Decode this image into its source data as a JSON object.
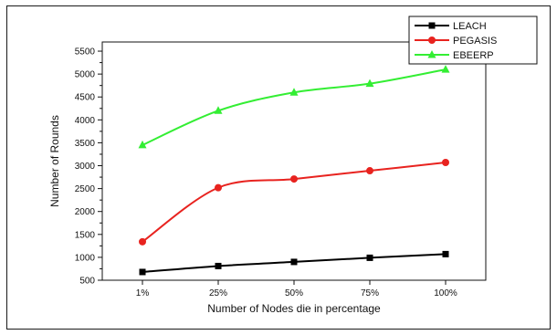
{
  "chart_data": {
    "type": "line",
    "title": "",
    "xlabel": "Number of Nodes die in percentage",
    "ylabel": "Number of Rounds",
    "categories": [
      "1%",
      "25%",
      "50%",
      "75%",
      "100%"
    ],
    "ylim": [
      500,
      5700
    ],
    "yticks": [
      500,
      1000,
      1500,
      2000,
      2500,
      3000,
      3500,
      4000,
      4500,
      5000,
      5500
    ],
    "grid": false,
    "legend_position": "top-right",
    "series": [
      {
        "name": "LEACH",
        "color": "#000000",
        "marker": "square",
        "values": [
          680,
          810,
          900,
          990,
          1070
        ]
      },
      {
        "name": "PEGASIS",
        "color": "#e8231f",
        "marker": "circle",
        "values": [
          1340,
          2520,
          2710,
          2890,
          3070
        ]
      },
      {
        "name": "EBEERP",
        "color": "#33ee33",
        "marker": "triangle",
        "values": [
          3450,
          4200,
          4600,
          4790,
          5100
        ]
      }
    ]
  }
}
